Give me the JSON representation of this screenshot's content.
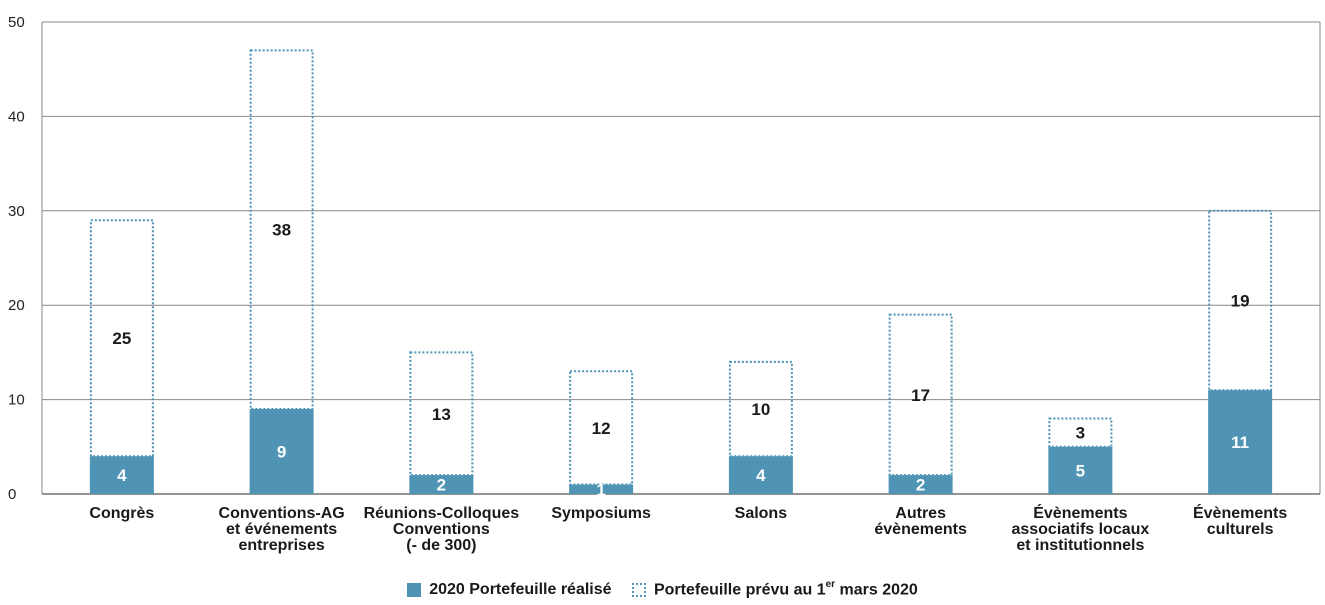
{
  "chart_data": {
    "type": "bar",
    "stacked": true,
    "categories": [
      [
        "Congrès"
      ],
      [
        "Conventions-AG",
        "et événements",
        "entreprises"
      ],
      [
        "Réunions-Colloques",
        "Conventions",
        "(- de 300)"
      ],
      [
        "Symposiums"
      ],
      [
        "Salons"
      ],
      [
        "Autres",
        "évènements"
      ],
      [
        "Évènements",
        "associatifs locaux",
        "et institutionnels"
      ],
      [
        "Évènements",
        "culturels"
      ]
    ],
    "series": [
      {
        "name": "2020 Portefeuille réalisé",
        "values": [
          4,
          9,
          2,
          1,
          4,
          2,
          5,
          11
        ],
        "color": "#4f94b5",
        "style": "solid"
      },
      {
        "name": "Portefeuille prévu au 1er mars 2020",
        "values": [
          25,
          38,
          13,
          12,
          10,
          17,
          3,
          19
        ],
        "color": "#4f94b5",
        "style": "dotted"
      }
    ],
    "ylim": [
      0,
      50
    ],
    "yticks": [
      0,
      10,
      20,
      30,
      40,
      50
    ],
    "grid": true,
    "legend_position": "bottom-center",
    "title": "",
    "xlabel": "",
    "ylabel": ""
  },
  "legend": {
    "item1": "2020 Portefeuille réalisé",
    "item2_main": "Portefeuille prévu au 1",
    "item2_sup": "er",
    "item2_tail": " mars 2020"
  }
}
